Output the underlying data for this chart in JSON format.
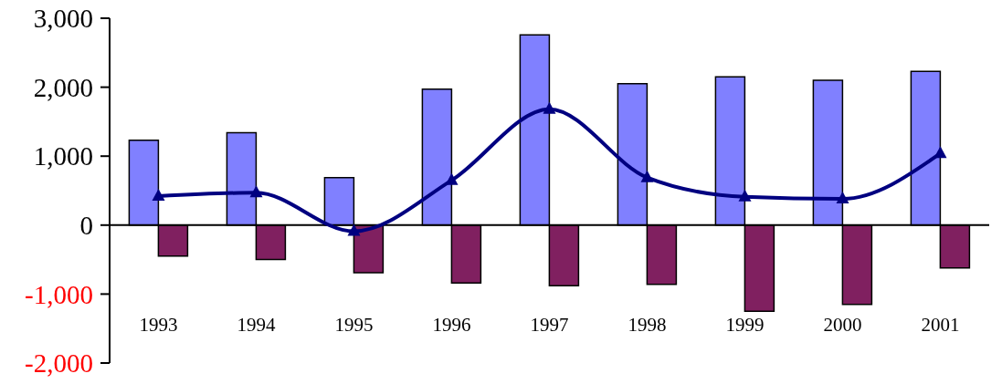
{
  "chart_data": {
    "type": "bar",
    "categories": [
      "1993",
      "1994",
      "1995",
      "1996",
      "1997",
      "1998",
      "1999",
      "2000",
      "2001"
    ],
    "series": [
      {
        "color": "#8080ff",
        "values": [
          1230,
          1340,
          690,
          1970,
          2760,
          2050,
          2150,
          2100,
          2230
        ]
      },
      {
        "color": "#802060",
        "values": [
          -450,
          -500,
          -690,
          -840,
          -880,
          -860,
          -1250,
          -1150,
          -620
        ]
      },
      {
        "type": "line",
        "color": "#000080",
        "values": [
          420,
          470,
          -90,
          650,
          1680,
          690,
          410,
          380,
          1040
        ]
      }
    ],
    "ylim": [
      -2000,
      3000
    ],
    "yticks": [
      {
        "value": -2000,
        "label": "-2,000"
      },
      {
        "value": -1000,
        "label": "-1,000"
      },
      {
        "value": 0,
        "label": "0"
      },
      {
        "value": 1000,
        "label": "1,000"
      },
      {
        "value": 2000,
        "label": "2,000"
      },
      {
        "value": 3000,
        "label": "3,000"
      }
    ],
    "ref_lines": [
      {
        "axis": "y",
        "value": 0,
        "color": "#000000"
      }
    ],
    "legend": false,
    "marker": "triangle",
    "line_style": "solid"
  }
}
